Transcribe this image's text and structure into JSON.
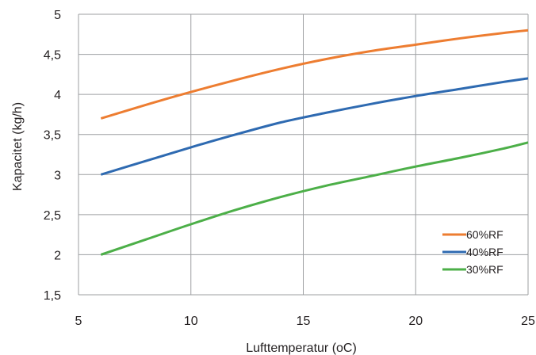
{
  "chart_data": {
    "type": "line",
    "title": "",
    "xlabel": "Lufttemperatur",
    "xlabel_unit": "(oC)",
    "ylabel": "Kapacitet (kg/h)",
    "xlim": [
      5,
      25
    ],
    "ylim": [
      1.5,
      5
    ],
    "x_ticks": [
      5,
      10,
      15,
      20,
      25
    ],
    "x_tick_labels": [
      "5",
      "10",
      "15",
      "20",
      "25"
    ],
    "y_ticks": [
      1.5,
      2,
      2.5,
      3,
      3.5,
      4,
      4.5,
      5
    ],
    "y_tick_labels": [
      "1,5",
      "2",
      "2,5",
      "3",
      "3,5",
      "4",
      "4,5",
      "5"
    ],
    "grid": true,
    "legend_position": "lower-right",
    "series": [
      {
        "name": "60%RF",
        "color": "#ed7d31",
        "x": [
          6,
          8,
          10,
          12,
          14,
          16,
          18,
          20,
          22,
          24,
          25
        ],
        "y": [
          3.7,
          3.87,
          4.03,
          4.18,
          4.32,
          4.44,
          4.54,
          4.62,
          4.7,
          4.77,
          4.8
        ]
      },
      {
        "name": "40%RF",
        "color": "#2e6ab1",
        "x": [
          6,
          8,
          10,
          12,
          14,
          16,
          18,
          20,
          22,
          24,
          25
        ],
        "y": [
          3.0,
          3.17,
          3.34,
          3.5,
          3.65,
          3.77,
          3.88,
          3.98,
          4.07,
          4.16,
          4.2
        ]
      },
      {
        "name": "30%RF",
        "color": "#4caf48",
        "x": [
          6,
          8,
          10,
          12,
          14,
          16,
          18,
          20,
          22,
          24,
          25
        ],
        "y": [
          2.0,
          2.19,
          2.38,
          2.56,
          2.72,
          2.86,
          2.98,
          3.1,
          3.21,
          3.33,
          3.4
        ]
      }
    ]
  }
}
